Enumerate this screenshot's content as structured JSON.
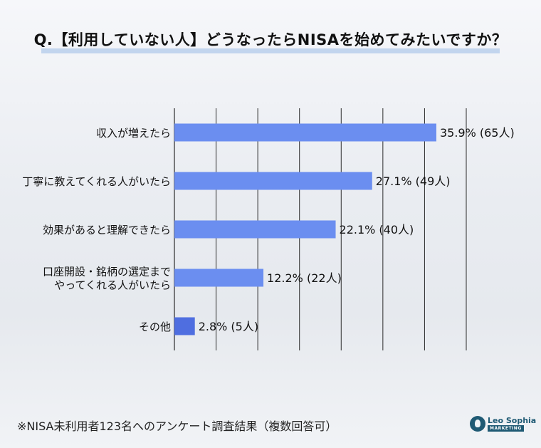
{
  "title": "Q.【利用していない人】どうなったらNISAを始めてみたいですか？",
  "footnote": "※NISA未利用者123名へのアンケート調査結果（複数回答可）",
  "logo": {
    "name": "Leo Sophia",
    "sub": "MARKETING"
  },
  "colors": {
    "bar": "#6b8ef0",
    "bar_last": "#4f6ee0",
    "grid": "#2b2b2b"
  },
  "chart_data": {
    "type": "bar",
    "orientation": "horizontal",
    "categories": [
      "収入が増えたら",
      "丁寧に教えてくれる人がいたら",
      "効果があると理解できたら",
      "口座開設・銘柄の選定まで\nやってくれる人がいたら",
      "その他"
    ],
    "values": [
      35.9,
      27.1,
      22.1,
      12.2,
      2.8
    ],
    "data_labels": [
      "35.9% (65人)",
      "27.1% (49人)",
      "22.1% (40人)",
      "12.2% (22人)",
      "2.8% (5人)"
    ],
    "xlim": [
      0,
      40
    ],
    "grid": true
  }
}
